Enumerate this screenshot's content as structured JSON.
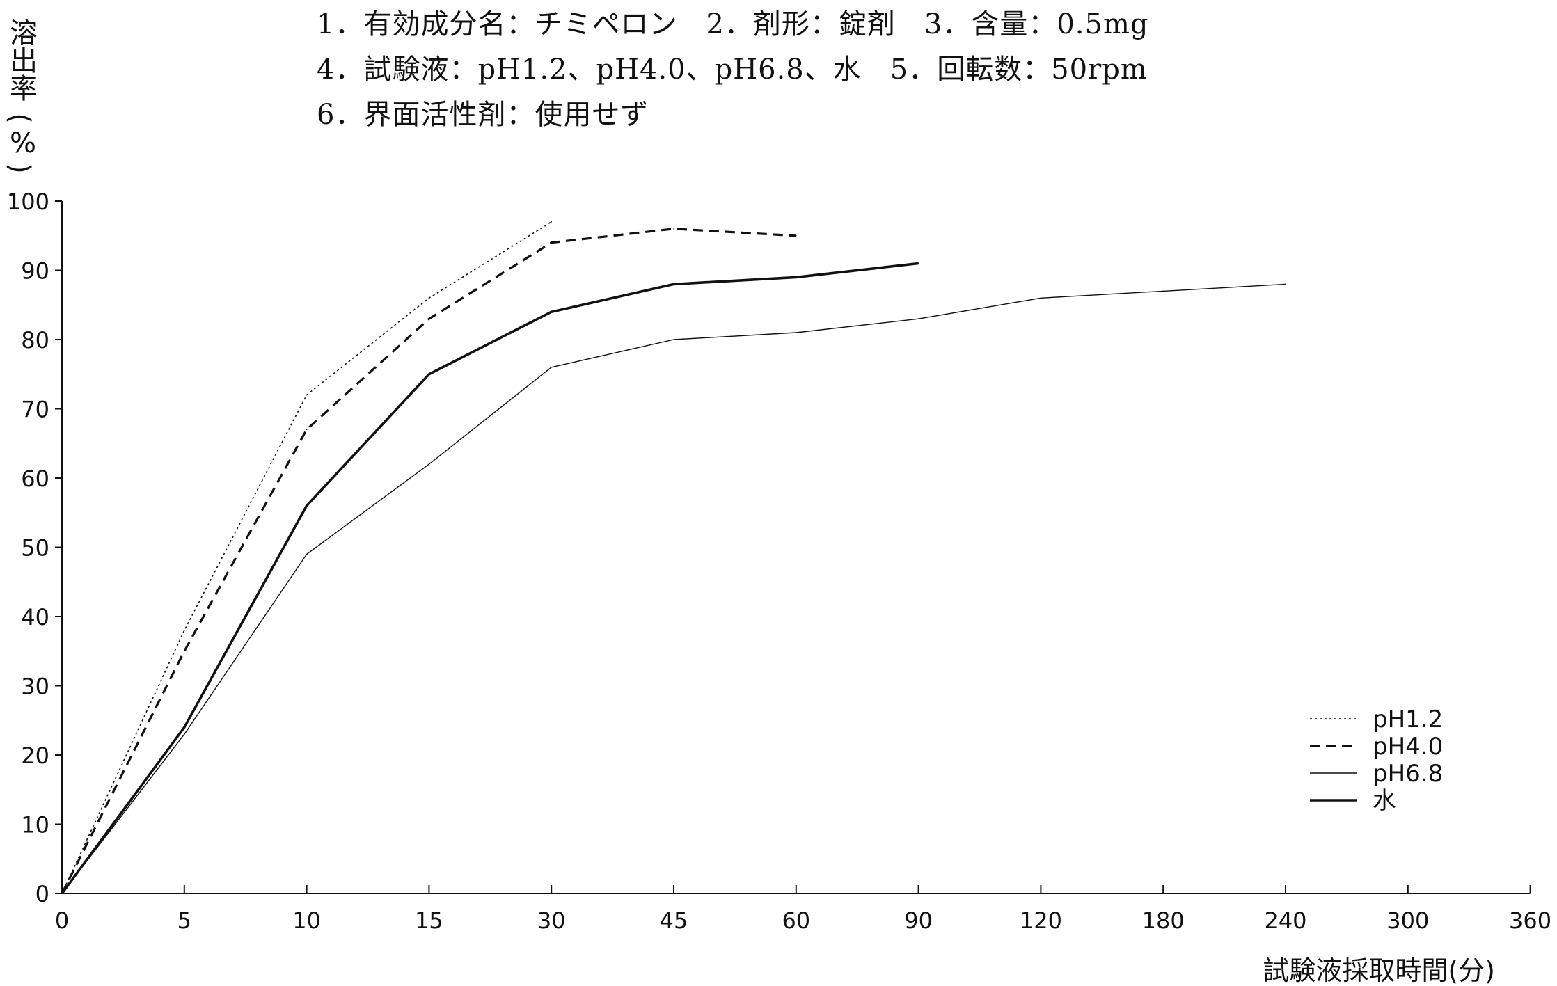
{
  "header": {
    "lines": [
      "1．有効成分名：チミペロン　2．剤形：錠剤　3．含量：0.5mg",
      "4．試験液：pH1.2、pH4.0、pH6.8、水　5．回転数：50rpm",
      "6．界面活性剤：使用せず"
    ]
  },
  "chart_data": {
    "type": "line",
    "xlabel": "試験液採取時間(分)",
    "ylabel": "溶出率(%)",
    "ylabel_chars": [
      "溶",
      "出",
      "率",
      "(",
      "%",
      ")"
    ],
    "x_categories": [
      "0",
      "5",
      "10",
      "15",
      "30",
      "45",
      "60",
      "90",
      "120",
      "180",
      "240",
      "300",
      "360"
    ],
    "y_ticks": [
      "0",
      "10",
      "20",
      "30",
      "40",
      "50",
      "60",
      "70",
      "80",
      "90",
      "100"
    ],
    "ylim": [
      0,
      100
    ],
    "grid": false,
    "legend_position": "bottom-right",
    "series": [
      {
        "name": "pH1.2",
        "style": "dotted",
        "x": [
          0,
          5,
          10,
          15,
          30
        ],
        "values": [
          0,
          38,
          72,
          86,
          97
        ]
      },
      {
        "name": "pH4.0",
        "style": "dashed",
        "x": [
          0,
          5,
          10,
          15,
          30,
          45,
          60
        ],
        "values": [
          0,
          35,
          67,
          83,
          94,
          96,
          95
        ]
      },
      {
        "name": "pH6.8",
        "style": "thin",
        "x": [
          0,
          5,
          10,
          15,
          30,
          45,
          60,
          90,
          120,
          180,
          240
        ],
        "values": [
          0,
          23,
          49,
          62,
          76,
          80,
          81,
          83,
          86,
          87,
          88
        ]
      },
      {
        "name": "水",
        "style": "thick",
        "x": [
          0,
          5,
          10,
          15,
          30,
          45,
          60,
          90
        ],
        "values": [
          0,
          24,
          56,
          75,
          84,
          88,
          89,
          91
        ]
      }
    ]
  },
  "styles": {
    "line_color": "#111111",
    "background": "#ffffff"
  }
}
